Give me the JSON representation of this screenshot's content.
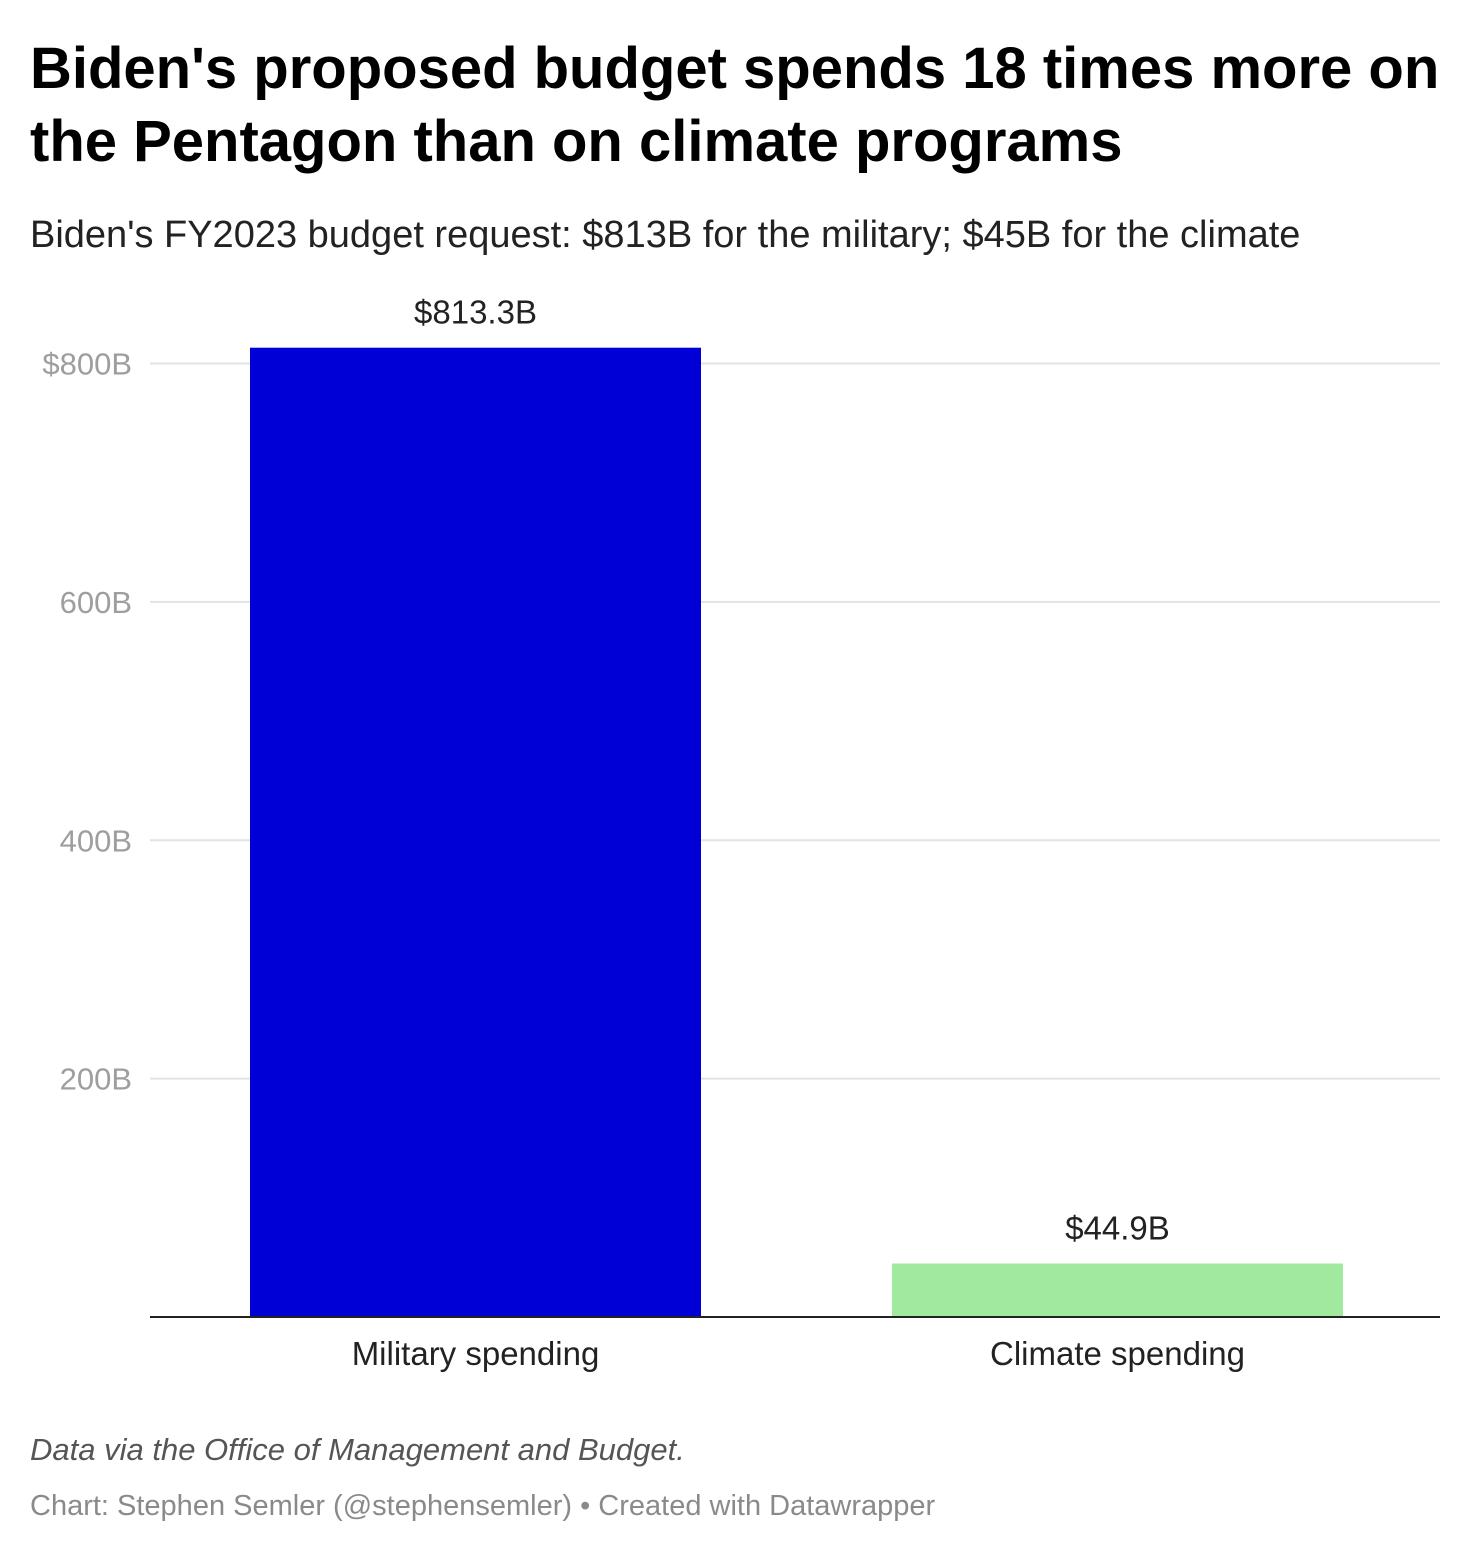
{
  "chart_data": {
    "type": "bar",
    "title": "Biden's proposed budget spends 18 times more on the Pentagon than on climate programs",
    "subtitle": "Biden's FY2023 budget request: $813B for the military; $45B for the climate",
    "categories": [
      "Military spending",
      "Climate spending"
    ],
    "values": [
      813.3,
      44.9
    ],
    "value_labels": [
      "$813.3B",
      "$44.9B"
    ],
    "bar_colors": [
      "#0000d6",
      "#a2e9a0"
    ],
    "ylim": [
      0,
      813.3
    ],
    "y_ticks": [
      200,
      400,
      600,
      800
    ],
    "y_tick_labels": [
      "200B",
      "400B",
      "600B",
      "$800B"
    ],
    "grid": true,
    "legend": "none",
    "xlabel": "",
    "ylabel": ""
  },
  "footer": {
    "notes": "Data via the Office of Management and Budget.",
    "byline": "Chart: Stephen Semler (@stephensemler) • Created with Datawrapper"
  }
}
